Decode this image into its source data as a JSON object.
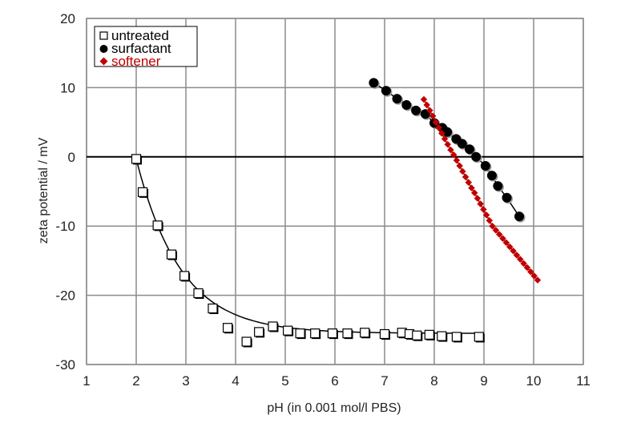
{
  "chart_data": {
    "type": "scatter",
    "xlabel": "pH (in 0.001 mol/l PBS)",
    "ylabel": "zeta potential / mV",
    "xlim": [
      1,
      11
    ],
    "ylim": [
      -30,
      20
    ],
    "xticks": [
      "1",
      "2",
      "3",
      "4",
      "5",
      "6",
      "7",
      "8",
      "9",
      "10",
      "11"
    ],
    "yticks": [
      "20",
      "10",
      "0",
      "-10",
      "-20",
      "-30"
    ],
    "grid": true,
    "legend_position": "top-left",
    "series": [
      {
        "name": "untreated",
        "marker": "square",
        "color": "#000000",
        "fill": "#ffffff",
        "line": "fit",
        "fit": {
          "plateau": -25.5,
          "amplitude": 25.2,
          "rate": 1.117,
          "x0": 2.0,
          "xmax": 9.0
        },
        "x": [
          2.0,
          2.13,
          2.43,
          2.71,
          2.97,
          3.25,
          3.54,
          3.84,
          4.22,
          4.47,
          4.75,
          5.05,
          5.3,
          5.6,
          5.95,
          6.25,
          6.6,
          7.0,
          7.35,
          7.5,
          7.65,
          7.9,
          8.15,
          8.45,
          8.9
        ],
        "y": [
          -0.3,
          -5.1,
          -9.9,
          -14.1,
          -17.2,
          -19.7,
          -21.9,
          -24.7,
          -26.7,
          -25.3,
          -24.5,
          -25.1,
          -25.5,
          -25.5,
          -25.5,
          -25.5,
          -25.4,
          -25.6,
          -25.4,
          -25.6,
          -25.8,
          -25.7,
          -25.9,
          -26.0,
          -26.0
        ]
      },
      {
        "name": "surfactant",
        "marker": "circle",
        "color": "#000000",
        "fill": "#000000",
        "line": "connect",
        "x": [
          6.78,
          7.03,
          7.25,
          7.44,
          7.63,
          7.82,
          8.0,
          8.16,
          8.26,
          8.44,
          8.56,
          8.71,
          8.84,
          9.03,
          9.16,
          9.28,
          9.46,
          9.71
        ],
        "y": [
          10.7,
          9.55,
          8.4,
          7.5,
          6.7,
          6.2,
          4.9,
          4.2,
          3.6,
          2.6,
          1.9,
          1.1,
          0.0,
          -1.3,
          -2.7,
          -4.2,
          -5.9,
          -8.6
        ]
      },
      {
        "name": "softener",
        "marker": "diamond",
        "color": "#c00000",
        "fill": "#c00000",
        "line": "connect",
        "x": [
          7.79,
          7.85,
          7.91,
          7.97,
          8.03,
          8.09,
          8.15,
          8.21,
          8.27,
          8.33,
          8.39,
          8.45,
          8.51,
          8.57,
          8.63,
          8.69,
          8.75,
          8.81,
          8.87,
          8.93,
          8.99,
          9.05,
          9.11,
          9.17,
          9.24,
          9.31,
          9.38,
          9.45,
          9.52,
          9.59,
          9.66,
          9.73,
          9.8,
          9.87,
          9.94,
          10.01,
          10.08
        ],
        "y": [
          8.3,
          7.5,
          6.7,
          5.9,
          5.0,
          4.2,
          3.4,
          2.6,
          1.8,
          1.0,
          0.3,
          -0.5,
          -1.3,
          -2.1,
          -2.9,
          -3.7,
          -4.5,
          -5.2,
          -6.0,
          -6.8,
          -7.6,
          -8.4,
          -9.2,
          -10.0,
          -10.6,
          -11.2,
          -11.8,
          -12.4,
          -13.0,
          -13.6,
          -14.2,
          -14.8,
          -15.4,
          -16.0,
          -16.6,
          -17.2,
          -17.8
        ]
      }
    ]
  }
}
